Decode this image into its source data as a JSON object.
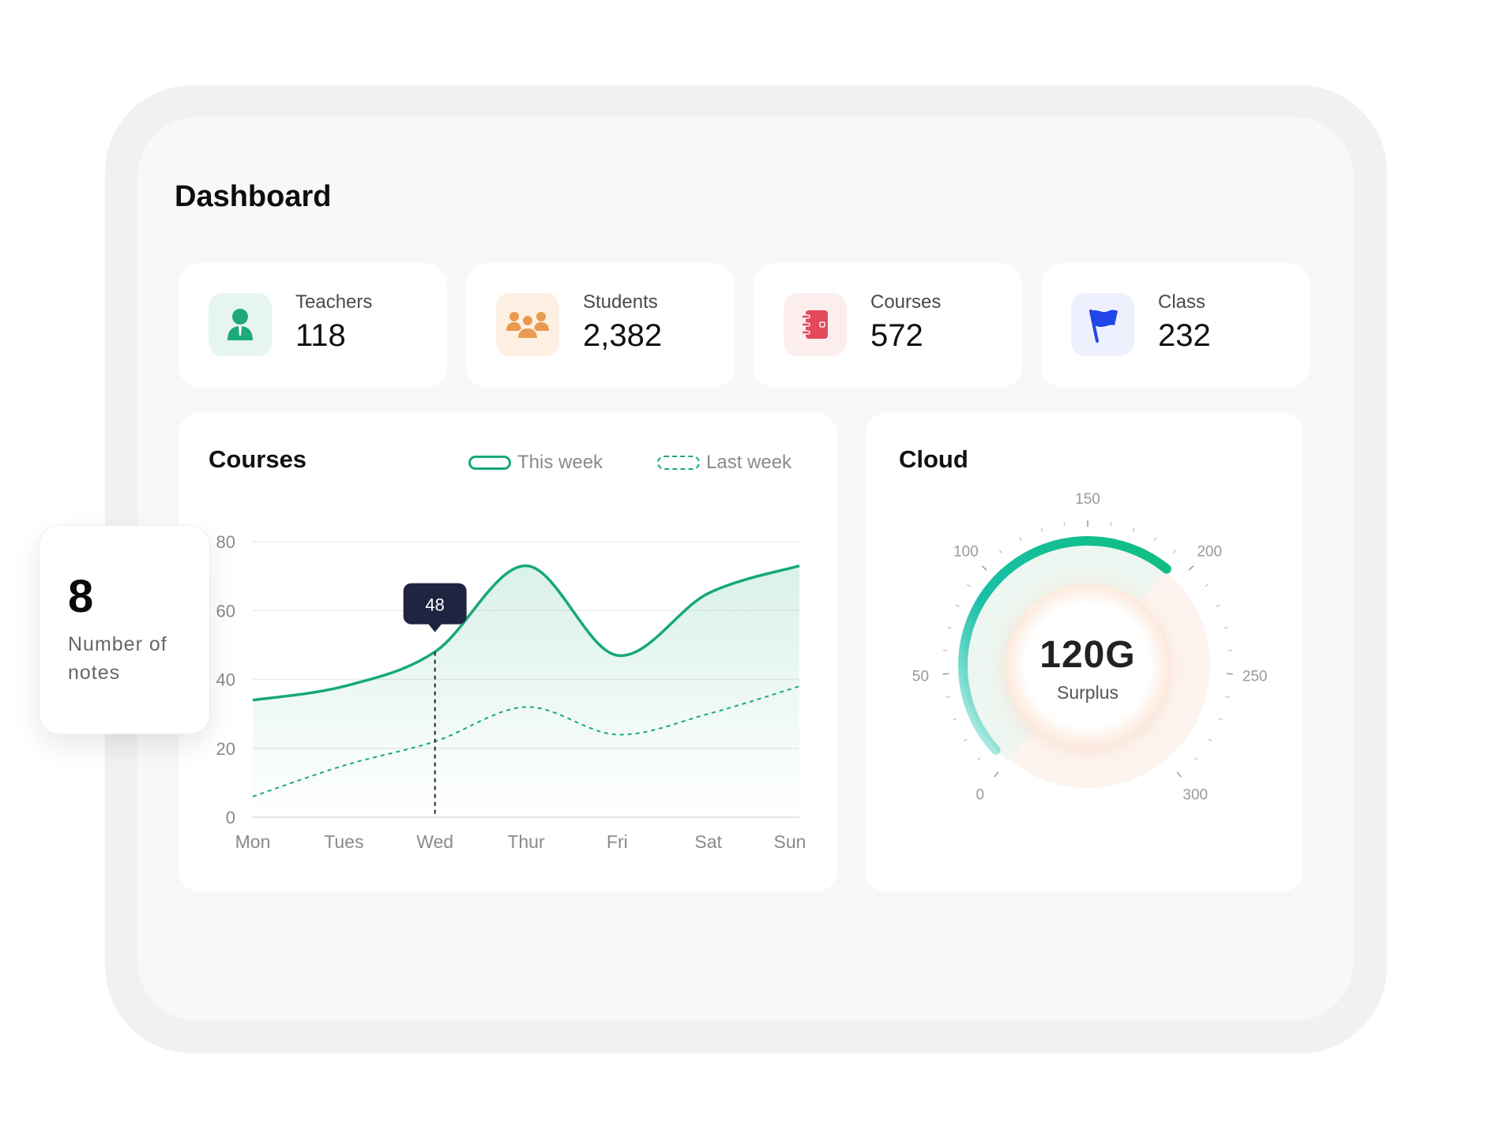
{
  "dashboard": {
    "title": "Dashboard"
  },
  "stats": [
    {
      "label": "Teachers",
      "value": "118",
      "icon": "teacher-icon",
      "color": "#1ea97c",
      "bg": "#e6f6ef"
    },
    {
      "label": "Students",
      "value": "2,382",
      "icon": "students-icon",
      "color": "#e89a50",
      "bg": "#fdf0e3"
    },
    {
      "label": "Courses",
      "value": "572",
      "icon": "course-book-icon",
      "color": "#e04a5a",
      "bg": "#fdeeee"
    },
    {
      "label": "Class",
      "value": "232",
      "icon": "flag-icon",
      "color": "#2247e8",
      "bg": "#eef1fd"
    }
  ],
  "courses_card": {
    "title": "Courses",
    "legend": {
      "this_week": "This week",
      "last_week": "Last week"
    }
  },
  "cloud_card": {
    "title": "Cloud",
    "value": "120G",
    "label": "Surplus"
  },
  "notes_card": {
    "number": "8",
    "label": "Number of notes"
  },
  "chart_data": [
    {
      "type": "line",
      "title": "Courses",
      "categories": [
        "Mon",
        "Tues",
        "Wed",
        "Thur",
        "Fri",
        "Sat",
        "Sun"
      ],
      "y_ticks": [
        0,
        20,
        40,
        60,
        80
      ],
      "ylim": [
        0,
        80
      ],
      "grid": true,
      "legend_position": "top-right",
      "series": [
        {
          "name": "This week",
          "style": "solid",
          "color": "#16a878",
          "values": [
            34,
            38,
            48,
            73,
            47,
            65,
            73
          ]
        },
        {
          "name": "Last week",
          "style": "dashed",
          "color": "#16a878",
          "values": [
            6,
            15,
            22,
            32,
            24,
            30,
            38
          ]
        }
      ],
      "tooltip": {
        "category": "Wed",
        "value": "48"
      }
    },
    {
      "type": "gauge",
      "title": "Cloud",
      "range": [
        0,
        300
      ],
      "ticks": [
        0,
        50,
        100,
        150,
        200,
        250,
        300
      ],
      "value": 192,
      "center_value": "120G",
      "center_label": "Surplus"
    }
  ]
}
